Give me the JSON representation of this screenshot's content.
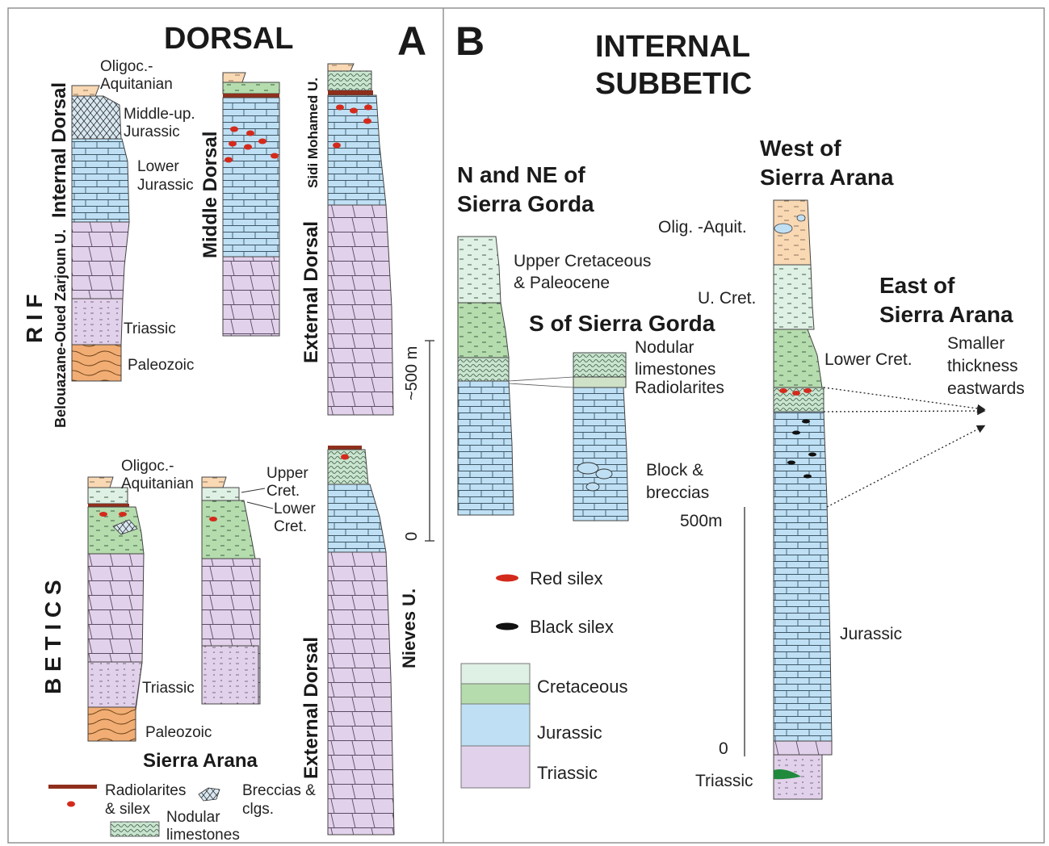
{
  "panel_a": {
    "letter": "A",
    "title": "DORSAL",
    "region_rif": "R I F",
    "region_betics": "B E T I C S",
    "rif_internal_label": "Internal Dorsal",
    "rif_internal_unit": "Belouazane-Oued Zarjoun U.",
    "rif_internal_ages": [
      "Oligoc.-",
      "Aquitanian",
      "Middle-up.",
      "Jurassic",
      "Lower",
      "Jurassic",
      "Triassic",
      "Paleozoic"
    ],
    "rif_middle_label": "Middle Dorsal",
    "rif_external_label": "External Dorsal",
    "rif_external_unit": "Sidi Mohamed U.",
    "scale_top": "~500 m",
    "scale_bottom": "0",
    "betics_ages": [
      "Oligoc.-",
      "Aquitanian",
      "Upper",
      "Cret.",
      "Lower",
      "Cret.",
      "Triassic",
      "Paleozoic"
    ],
    "betics_locality": "Sierra Arana",
    "betics_external_label": "External Dorsal",
    "betics_external_unit": "Nieves U.",
    "legend": {
      "radiolarites_1": "Radiolarites",
      "radiolarites_2": "& silex",
      "breccias_1": "Breccias &",
      "breccias_2": "clgs.",
      "nodular_1": "Nodular",
      "nodular_2": "limestones"
    }
  },
  "panel_b": {
    "letter": "B",
    "title_1": "INTERNAL",
    "title_2": "SUBBETIC",
    "col_n_title_1": "N and NE of",
    "col_n_title_2": "Sierra Gorda",
    "col_n_labels": [
      "Upper Cretaceous",
      "& Paleocene"
    ],
    "col_s_title": "S of Sierra Gorda",
    "col_s_labels": [
      "Nodular",
      "limestones",
      "Radiolarites",
      "Block &",
      "breccias"
    ],
    "col_w_title_1": "West of",
    "col_w_title_2": "Sierra Arana",
    "col_w_labels": [
      "Olig. -Aquit.",
      "U. Cret.",
      "Lower Cret.",
      "Jurassic",
      "Triassic"
    ],
    "east_title_1": "East of",
    "east_title_2": "Sierra Arana",
    "east_note": [
      "Smaller",
      "thickness",
      "eastwards"
    ],
    "scale_top": "500m",
    "scale_bottom": "0",
    "legend_symbols": [
      "Red silex",
      "Black silex"
    ],
    "legend_units": [
      "Cretaceous",
      "Jurassic",
      "Triassic"
    ]
  },
  "colors": {
    "triassic": "#e2d1ea",
    "jurassic": "#bfe0f4",
    "cretaceous_dark": "#b5dcad",
    "cretaceous_light": "#dff0e4",
    "oligocene": "#f9d8b4",
    "paleozoic": "#f1ad73",
    "red_silex": "#d42a1c",
    "black_silex": "#111111",
    "radiolarite": "#8f2f1c",
    "frame": "#8c8c8c"
  }
}
